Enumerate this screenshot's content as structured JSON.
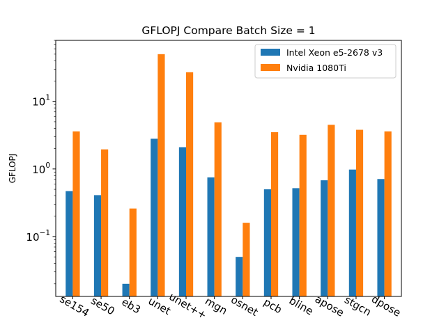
{
  "chart_data": {
    "type": "bar",
    "title": "GFLOPJ Compare Batch Size = 1",
    "xlabel": "",
    "ylabel": "GFLOPJ",
    "yscale": "log",
    "ylim": [
      0.013,
      80
    ],
    "yticks": [
      {
        "value": 0.1,
        "base": "10",
        "exp": "−1"
      },
      {
        "value": 1,
        "base": "10",
        "exp": "0"
      },
      {
        "value": 10,
        "base": "10",
        "exp": "1"
      }
    ],
    "categories": [
      "se154",
      "se50",
      "eb3",
      "unet",
      "unet++",
      "mgn",
      "osnet",
      "pcb",
      "bline",
      "apose",
      "stgcn",
      "dpose"
    ],
    "series": [
      {
        "name": "Intel Xeon e5-2678 v3",
        "color": "#1f77b4",
        "values": [
          0.47,
          0.41,
          0.02,
          2.8,
          2.1,
          0.75,
          0.05,
          0.5,
          0.52,
          0.68,
          0.98,
          0.71
        ]
      },
      {
        "name": "Nvidia 1080Ti",
        "color": "#ff7f0e",
        "values": [
          3.6,
          1.95,
          0.26,
          50,
          27,
          4.9,
          0.16,
          3.5,
          3.2,
          4.5,
          3.8,
          3.6
        ]
      }
    ],
    "legend": "top-right",
    "grid": false
  }
}
